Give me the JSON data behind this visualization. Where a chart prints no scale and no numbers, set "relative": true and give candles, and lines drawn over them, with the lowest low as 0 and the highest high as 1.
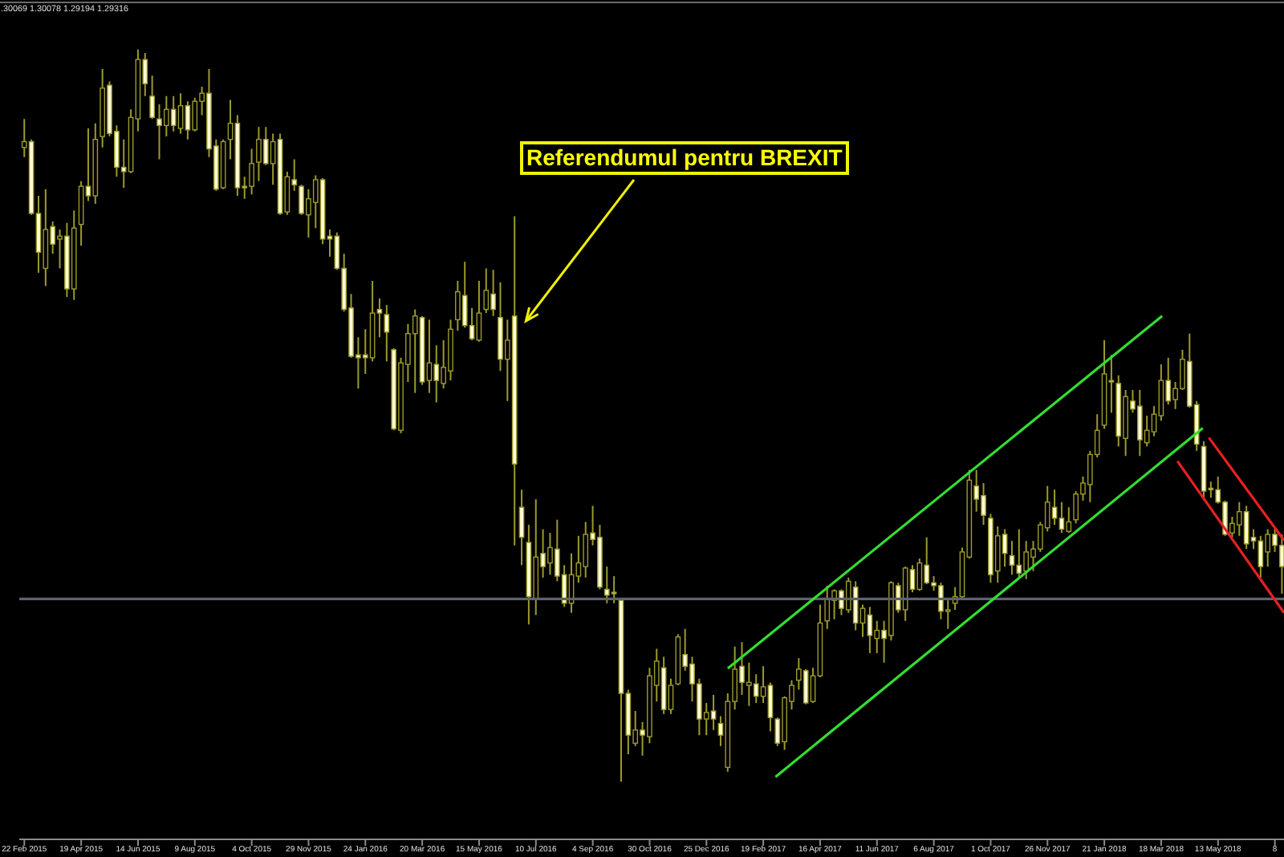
{
  "chart_data": {
    "type": "candlestick",
    "relative": true,
    "x": [
      "2015-02-22",
      "2015-03-01",
      "2015-03-08",
      "2015-03-15",
      "2015-03-22",
      "2015-03-29",
      "2015-04-05",
      "2015-04-12",
      "2015-04-19",
      "2015-04-26",
      "2015-05-03",
      "2015-05-10",
      "2015-05-17",
      "2015-05-24",
      "2015-05-31",
      "2015-06-07",
      "2015-06-14",
      "2015-06-21",
      "2015-06-28",
      "2015-07-05",
      "2015-07-12",
      "2015-07-19",
      "2015-07-26",
      "2015-08-02",
      "2015-08-09",
      "2015-08-16",
      "2015-08-23",
      "2015-08-30",
      "2015-09-06",
      "2015-09-13",
      "2015-09-20",
      "2015-09-27",
      "2015-10-04",
      "2015-10-11",
      "2015-10-18",
      "2015-10-25",
      "2015-11-01",
      "2015-11-08",
      "2015-11-15",
      "2015-11-22",
      "2015-11-29",
      "2015-12-06",
      "2015-12-13",
      "2015-12-20",
      "2015-12-27",
      "2016-01-03",
      "2016-01-10",
      "2016-01-17",
      "2016-01-24",
      "2016-01-31",
      "2016-02-07",
      "2016-02-14",
      "2016-02-21",
      "2016-02-28",
      "2016-03-06",
      "2016-03-13",
      "2016-03-20",
      "2016-03-27",
      "2016-04-03",
      "2016-04-10",
      "2016-04-17",
      "2016-04-24",
      "2016-05-01",
      "2016-05-08",
      "2016-05-15",
      "2016-05-22",
      "2016-05-29",
      "2016-06-05",
      "2016-06-12",
      "2016-06-19",
      "2016-06-26",
      "2016-07-03",
      "2016-07-10",
      "2016-07-17",
      "2016-07-24",
      "2016-07-31",
      "2016-08-07",
      "2016-08-14",
      "2016-08-21",
      "2016-08-28",
      "2016-09-04",
      "2016-09-11",
      "2016-09-18",
      "2016-09-25",
      "2016-10-02",
      "2016-10-09",
      "2016-10-16",
      "2016-10-23",
      "2016-10-30",
      "2016-11-06",
      "2016-11-13",
      "2016-11-20",
      "2016-11-27",
      "2016-12-04",
      "2016-12-11",
      "2016-12-18",
      "2016-12-25",
      "2017-01-01",
      "2017-01-08",
      "2017-01-15",
      "2017-01-22",
      "2017-01-29",
      "2017-02-05",
      "2017-02-12",
      "2017-02-19",
      "2017-02-26",
      "2017-03-05",
      "2017-03-12",
      "2017-03-19",
      "2017-03-26",
      "2017-04-02",
      "2017-04-09",
      "2017-04-16",
      "2017-04-23",
      "2017-04-30",
      "2017-05-07",
      "2017-05-14",
      "2017-05-21",
      "2017-05-28",
      "2017-06-04",
      "2017-06-11",
      "2017-06-18",
      "2017-06-25",
      "2017-07-02",
      "2017-07-09",
      "2017-07-16",
      "2017-07-23",
      "2017-07-30",
      "2017-08-06",
      "2017-08-13",
      "2017-08-20",
      "2017-08-27",
      "2017-09-03",
      "2017-09-10",
      "2017-09-17",
      "2017-09-24",
      "2017-10-01",
      "2017-10-08",
      "2017-10-15",
      "2017-10-22",
      "2017-10-29",
      "2017-11-05",
      "2017-11-12",
      "2017-11-19",
      "2017-11-26",
      "2017-12-03",
      "2017-12-10",
      "2017-12-17",
      "2017-12-24",
      "2017-12-31",
      "2018-01-07",
      "2018-01-14",
      "2018-01-21",
      "2018-01-28",
      "2018-02-04",
      "2018-02-11",
      "2018-02-18",
      "2018-02-25",
      "2018-03-04",
      "2018-03-11",
      "2018-03-18",
      "2018-03-25",
      "2018-04-01",
      "2018-04-08",
      "2018-04-15",
      "2018-04-22",
      "2018-04-29",
      "2018-05-06",
      "2018-05-13",
      "2018-05-20",
      "2018-05-27",
      "2018-06-03",
      "2018-06-10",
      "2018-06-17",
      "2018-06-24",
      "2018-07-01",
      "2018-07-08",
      "2018-07-15"
    ],
    "ohlc": [
      [
        0.866,
        0.905,
        0.853,
        0.874
      ],
      [
        0.874,
        0.877,
        0.774,
        0.776
      ],
      [
        0.776,
        0.8,
        0.695,
        0.723
      ],
      [
        0.701,
        0.809,
        0.677,
        0.754
      ],
      [
        0.758,
        0.765,
        0.721,
        0.734
      ],
      [
        0.741,
        0.754,
        0.701,
        0.745
      ],
      [
        0.745,
        0.763,
        0.662,
        0.673
      ],
      [
        0.673,
        0.78,
        0.658,
        0.756
      ],
      [
        0.761,
        0.82,
        0.732,
        0.813
      ],
      [
        0.813,
        0.892,
        0.793,
        0.8
      ],
      [
        0.8,
        0.899,
        0.789,
        0.877
      ],
      [
        0.881,
        0.973,
        0.866,
        0.947
      ],
      [
        0.951,
        0.956,
        0.881,
        0.885
      ],
      [
        0.888,
        0.896,
        0.826,
        0.839
      ],
      [
        0.839,
        0.877,
        0.811,
        0.833
      ],
      [
        0.833,
        0.918,
        0.831,
        0.907
      ],
      [
        0.905,
        1.0,
        0.888,
        0.986
      ],
      [
        0.986,
        0.995,
        0.936,
        0.953
      ],
      [
        0.936,
        0.964,
        0.905,
        0.907
      ],
      [
        0.905,
        0.925,
        0.85,
        0.896
      ],
      [
        0.896,
        0.936,
        0.881,
        0.918
      ],
      [
        0.918,
        0.936,
        0.888,
        0.896
      ],
      [
        0.892,
        0.94,
        0.885,
        0.923
      ],
      [
        0.923,
        0.929,
        0.877,
        0.89
      ],
      [
        0.89,
        0.934,
        0.888,
        0.929
      ],
      [
        0.929,
        0.949,
        0.91,
        0.94
      ],
      [
        0.94,
        0.973,
        0.853,
        0.864
      ],
      [
        0.868,
        0.877,
        0.807,
        0.809
      ],
      [
        0.811,
        0.877,
        0.809,
        0.874
      ],
      [
        0.877,
        0.931,
        0.85,
        0.899
      ],
      [
        0.899,
        0.91,
        0.8,
        0.811
      ],
      [
        0.813,
        0.826,
        0.796,
        0.811
      ],
      [
        0.813,
        0.864,
        0.802,
        0.844
      ],
      [
        0.846,
        0.894,
        0.82,
        0.877
      ],
      [
        0.877,
        0.894,
        0.842,
        0.844
      ],
      [
        0.844,
        0.885,
        0.815,
        0.874
      ],
      [
        0.877,
        0.885,
        0.774,
        0.776
      ],
      [
        0.778,
        0.833,
        0.774,
        0.826
      ],
      [
        0.822,
        0.85,
        0.807,
        0.815
      ],
      [
        0.813,
        0.815,
        0.774,
        0.776
      ],
      [
        0.774,
        0.809,
        0.743,
        0.796
      ],
      [
        0.791,
        0.828,
        0.756,
        0.822
      ],
      [
        0.822,
        0.824,
        0.734,
        0.741
      ],
      [
        0.745,
        0.754,
        0.717,
        0.741
      ],
      [
        0.745,
        0.75,
        0.699,
        0.701
      ],
      [
        0.701,
        0.721,
        0.642,
        0.645
      ],
      [
        0.647,
        0.666,
        0.579,
        0.581
      ],
      [
        0.583,
        0.607,
        0.537,
        0.579
      ],
      [
        0.583,
        0.618,
        0.557,
        0.579
      ],
      [
        0.579,
        0.684,
        0.574,
        0.64
      ],
      [
        0.645,
        0.66,
        0.607,
        0.64
      ],
      [
        0.638,
        0.651,
        0.574,
        0.614
      ],
      [
        0.59,
        0.592,
        0.48,
        0.482
      ],
      [
        0.48,
        0.579,
        0.476,
        0.572
      ],
      [
        0.57,
        0.625,
        0.546,
        0.612
      ],
      [
        0.612,
        0.645,
        0.531,
        0.636
      ],
      [
        0.634,
        0.636,
        0.542,
        0.546
      ],
      [
        0.548,
        0.631,
        0.531,
        0.572
      ],
      [
        0.57,
        0.596,
        0.518,
        0.548
      ],
      [
        0.544,
        0.603,
        0.537,
        0.566
      ],
      [
        0.561,
        0.631,
        0.548,
        0.618
      ],
      [
        0.631,
        0.684,
        0.616,
        0.669
      ],
      [
        0.664,
        0.71,
        0.62,
        0.623
      ],
      [
        0.623,
        0.647,
        0.603,
        0.605
      ],
      [
        0.603,
        0.684,
        0.601,
        0.64
      ],
      [
        0.645,
        0.701,
        0.64,
        0.671
      ],
      [
        0.666,
        0.699,
        0.636,
        0.645
      ],
      [
        0.634,
        0.682,
        0.561,
        0.577
      ],
      [
        0.577,
        0.631,
        0.52,
        0.603
      ],
      [
        0.636,
        0.772,
        0.323,
        0.434
      ],
      [
        0.375,
        0.399,
        0.296,
        0.334
      ],
      [
        0.327,
        0.351,
        0.215,
        0.253
      ],
      [
        0.25,
        0.386,
        0.228,
        0.307
      ],
      [
        0.312,
        0.345,
        0.279,
        0.294
      ],
      [
        0.299,
        0.34,
        0.283,
        0.32
      ],
      [
        0.318,
        0.358,
        0.274,
        0.281
      ],
      [
        0.283,
        0.296,
        0.239,
        0.244
      ],
      [
        0.244,
        0.312,
        0.231,
        0.283
      ],
      [
        0.281,
        0.336,
        0.272,
        0.299
      ],
      [
        0.294,
        0.355,
        0.279,
        0.338
      ],
      [
        0.34,
        0.377,
        0.323,
        0.331
      ],
      [
        0.334,
        0.351,
        0.263,
        0.266
      ],
      [
        0.263,
        0.294,
        0.244,
        0.255
      ],
      [
        0.259,
        0.281,
        0.244,
        0.257
      ],
      [
        0.248,
        0.25,
        0.0,
        0.121
      ],
      [
        0.121,
        0.126,
        0.038,
        0.064
      ],
      [
        0.053,
        0.097,
        0.049,
        0.071
      ],
      [
        0.071,
        0.082,
        0.036,
        0.064
      ],
      [
        0.062,
        0.156,
        0.053,
        0.145
      ],
      [
        0.132,
        0.182,
        0.11,
        0.165
      ],
      [
        0.156,
        0.171,
        0.093,
        0.099
      ],
      [
        0.099,
        0.141,
        0.093,
        0.132
      ],
      [
        0.134,
        0.202,
        0.132,
        0.198
      ],
      [
        0.174,
        0.209,
        0.152,
        0.158
      ],
      [
        0.161,
        0.171,
        0.11,
        0.134
      ],
      [
        0.134,
        0.141,
        0.064,
        0.086
      ],
      [
        0.086,
        0.108,
        0.064,
        0.095
      ],
      [
        0.097,
        0.119,
        0.071,
        0.086
      ],
      [
        0.08,
        0.09,
        0.049,
        0.064
      ],
      [
        0.02,
        0.121,
        0.014,
        0.11
      ],
      [
        0.11,
        0.185,
        0.099,
        0.154
      ],
      [
        0.158,
        0.191,
        0.119,
        0.136
      ],
      [
        0.132,
        0.163,
        0.104,
        0.136
      ],
      [
        0.134,
        0.147,
        0.108,
        0.117
      ],
      [
        0.117,
        0.158,
        0.108,
        0.13
      ],
      [
        0.132,
        0.136,
        0.069,
        0.088
      ],
      [
        0.086,
        0.088,
        0.049,
        0.053
      ],
      [
        0.055,
        0.117,
        0.044,
        0.115
      ],
      [
        0.11,
        0.139,
        0.099,
        0.132
      ],
      [
        0.139,
        0.169,
        0.126,
        0.154
      ],
      [
        0.152,
        0.154,
        0.106,
        0.108
      ],
      [
        0.11,
        0.156,
        0.108,
        0.145
      ],
      [
        0.145,
        0.242,
        0.143,
        0.217
      ],
      [
        0.22,
        0.268,
        0.209,
        0.25
      ],
      [
        0.248,
        0.263,
        0.222,
        0.261
      ],
      [
        0.261,
        0.263,
        0.228,
        0.237
      ],
      [
        0.235,
        0.279,
        0.231,
        0.274
      ],
      [
        0.266,
        0.274,
        0.207,
        0.217
      ],
      [
        0.217,
        0.242,
        0.198,
        0.237
      ],
      [
        0.228,
        0.239,
        0.176,
        0.2
      ],
      [
        0.196,
        0.22,
        0.176,
        0.207
      ],
      [
        0.207,
        0.22,
        0.163,
        0.196
      ],
      [
        0.2,
        0.274,
        0.193,
        0.272
      ],
      [
        0.268,
        0.272,
        0.231,
        0.235
      ],
      [
        0.235,
        0.294,
        0.22,
        0.292
      ],
      [
        0.29,
        0.296,
        0.259,
        0.263
      ],
      [
        0.263,
        0.305,
        0.261,
        0.299
      ],
      [
        0.296,
        0.334,
        0.27,
        0.272
      ],
      [
        0.272,
        0.281,
        0.261,
        0.268
      ],
      [
        0.268,
        0.272,
        0.222,
        0.233
      ],
      [
        0.233,
        0.248,
        0.209,
        0.235
      ],
      [
        0.244,
        0.266,
        0.235,
        0.253
      ],
      [
        0.253,
        0.32,
        0.25,
        0.314
      ],
      [
        0.307,
        0.426,
        0.305,
        0.412
      ],
      [
        0.404,
        0.426,
        0.369,
        0.386
      ],
      [
        0.391,
        0.408,
        0.351,
        0.364
      ],
      [
        0.36,
        0.366,
        0.272,
        0.283
      ],
      [
        0.288,
        0.349,
        0.272,
        0.336
      ],
      [
        0.338,
        0.345,
        0.294,
        0.312
      ],
      [
        0.309,
        0.329,
        0.283,
        0.296
      ],
      [
        0.296,
        0.345,
        0.279,
        0.285
      ],
      [
        0.288,
        0.329,
        0.277,
        0.314
      ],
      [
        0.307,
        0.329,
        0.288,
        0.318
      ],
      [
        0.318,
        0.355,
        0.314,
        0.351
      ],
      [
        0.347,
        0.404,
        0.342,
        0.382
      ],
      [
        0.375,
        0.399,
        0.351,
        0.36
      ],
      [
        0.36,
        0.382,
        0.34,
        0.345
      ],
      [
        0.342,
        0.375,
        0.34,
        0.355
      ],
      [
        0.358,
        0.397,
        0.353,
        0.393
      ],
      [
        0.393,
        0.417,
        0.384,
        0.408
      ],
      [
        0.406,
        0.452,
        0.382,
        0.447
      ],
      [
        0.447,
        0.502,
        0.443,
        0.48
      ],
      [
        0.487,
        0.603,
        0.482,
        0.557
      ],
      [
        0.548,
        0.583,
        0.504,
        0.546
      ],
      [
        0.544,
        0.555,
        0.458,
        0.472
      ],
      [
        0.469,
        0.535,
        0.445,
        0.526
      ],
      [
        0.52,
        0.535,
        0.504,
        0.509
      ],
      [
        0.513,
        0.535,
        0.445,
        0.467
      ],
      [
        0.463,
        0.5,
        0.458,
        0.48
      ],
      [
        0.478,
        0.513,
        0.472,
        0.502
      ],
      [
        0.5,
        0.57,
        0.493,
        0.548
      ],
      [
        0.548,
        0.579,
        0.515,
        0.52
      ],
      [
        0.522,
        0.546,
        0.509,
        0.537
      ],
      [
        0.537,
        0.59,
        0.535,
        0.577
      ],
      [
        0.574,
        0.612,
        0.511,
        0.513
      ],
      [
        0.515,
        0.52,
        0.452,
        0.461
      ],
      [
        0.458,
        0.465,
        0.386,
        0.397
      ],
      [
        0.401,
        0.41,
        0.388,
        0.399
      ],
      [
        0.399,
        0.417,
        0.38,
        0.382
      ],
      [
        0.382,
        0.384,
        0.336,
        0.338
      ],
      [
        0.34,
        0.362,
        0.334,
        0.353
      ],
      [
        0.351,
        0.382,
        0.336,
        0.369
      ],
      [
        0.369,
        0.377,
        0.318,
        0.325
      ],
      [
        0.334,
        0.345,
        0.318,
        0.329
      ],
      [
        0.329,
        0.336,
        0.279,
        0.294
      ],
      [
        0.314,
        0.345,
        0.294,
        0.338
      ],
      [
        0.338,
        0.347,
        0.314,
        0.323
      ],
      [
        0.323,
        0.338,
        0.257,
        0.294
      ]
    ],
    "color": "#9c9a2c",
    "colors": [
      "#000000",
      "#fffbd4",
      "#fffbd4",
      "#000000",
      "#fffbd4",
      "#000000",
      "#fffbd4",
      "#000000",
      "#000000",
      "#fffbd4",
      "#000000",
      "#000000",
      "#fffbd4",
      "#fffbd4",
      "#fffbd4",
      "#000000",
      "#000000",
      "#fffbd4",
      "#fffbd4",
      "#fffbd4",
      "#000000",
      "#fffbd4",
      "#000000",
      "#fffbd4",
      "#000000",
      "#000000",
      "#fffbd4",
      "#fffbd4",
      "#000000",
      "#000000",
      "#fffbd4",
      "#fffbd4",
      "#000000",
      "#000000",
      "#fffbd4",
      "#000000",
      "#fffbd4",
      "#000000",
      "#fffbd4",
      "#fffbd4",
      "#000000",
      "#000000",
      "#fffbd4",
      "#fffbd4",
      "#fffbd4",
      "#fffbd4",
      "#fffbd4",
      "#fffbd4",
      "#fffbd4",
      "#000000",
      "#fffbd4",
      "#fffbd4",
      "#fffbd4",
      "#000000",
      "#000000",
      "#000000",
      "#fffbd4",
      "#000000",
      "#fffbd4",
      "#000000",
      "#000000",
      "#000000",
      "#fffbd4",
      "#fffbd4",
      "#000000",
      "#000000",
      "#fffbd4",
      "#fffbd4",
      "#000000",
      "#fffbd4",
      "#fffbd4",
      "#fffbd4",
      "#000000",
      "#fffbd4",
      "#000000",
      "#fffbd4",
      "#fffbd4",
      "#000000",
      "#000000",
      "#000000",
      "#fffbd4",
      "#fffbd4",
      "#fffbd4",
      "#fffbd4",
      "#fffbd4",
      "#fffbd4",
      "#000000",
      "#fffbd4",
      "#000000",
      "#000000",
      "#fffbd4",
      "#000000",
      "#000000",
      "#fffbd4",
      "#fffbd4",
      "#fffbd4",
      "#000000",
      "#fffbd4",
      "#fffbd4",
      "#000000",
      "#000000",
      "#fffbd4",
      "#000000",
      "#fffbd4",
      "#000000",
      "#fffbd4",
      "#fffbd4",
      "#000000",
      "#000000",
      "#000000",
      "#fffbd4",
      "#000000",
      "#000000",
      "#000000",
      "#000000",
      "#fffbd4",
      "#000000",
      "#fffbd4",
      "#000000",
      "#fffbd4",
      "#000000",
      "#fffbd4",
      "#000000",
      "#fffbd4",
      "#000000",
      "#fffbd4",
      "#000000",
      "#fffbd4",
      "#fffbd4",
      "#fffbd4",
      "#000000",
      "#000000",
      "#000000",
      "#000000",
      "#fffbd4",
      "#fffbd4",
      "#fffbd4",
      "#000000",
      "#fffbd4",
      "#fffbd4",
      "#fffbd4",
      "#000000",
      "#000000",
      "#000000",
      "#000000",
      "#fffbd4",
      "#fffbd4",
      "#000000",
      "#000000",
      "#000000",
      "#000000",
      "#000000",
      "#000000",
      "#fffbd4",
      "#fffbd4",
      "#000000",
      "#fffbd4",
      "#fffbd4",
      "#000000",
      "#000000",
      "#000000",
      "#fffbd4",
      "#000000",
      "#000000",
      "#fffbd4",
      "#fffbd4",
      "#fffbd4",
      "#fffbd4",
      "#fffbd4",
      "#fffbd4",
      "#000000",
      "#000000",
      "#fffbd4",
      "#fffbd4",
      "#fffbd4",
      "#000000",
      "#fffbd4",
      "#fffbd4"
    ],
    "series": [
      {
        "type": "line",
        "color": "#33dd33",
        "x": [
          "2017-01-15",
          "2018-03-19"
        ],
        "values": [
          0.155,
          0.636
        ]
      },
      {
        "type": "line",
        "color": "#33dd33",
        "x": [
          "2017-03-03",
          "2018-04-28"
        ],
        "values": [
          0.007,
          0.483
        ]
      },
      {
        "type": "line",
        "color": "#e82020",
        "x": [
          "2018-05-04",
          "2018-07-17"
        ],
        "values": [
          0.47,
          0.33
        ]
      },
      {
        "type": "line",
        "color": "#e82020",
        "x": [
          "2018-04-03",
          "2018-07-17"
        ],
        "values": [
          0.438,
          0.231
        ]
      }
    ],
    "xlim": [
      "2015-02-17",
      "2018-07-17"
    ],
    "xticks": [
      {
        "value": "2015-02-22",
        "label": "22 Feb 2015"
      },
      {
        "value": "2015-04-19",
        "label": "19 Apr 2015"
      },
      {
        "value": "2015-06-14",
        "label": "14 Jun 2015"
      },
      {
        "value": "2015-08-09",
        "label": "9 Aug 2015"
      },
      {
        "value": "2015-10-04",
        "label": "4 Oct 2015"
      },
      {
        "value": "2015-11-29",
        "label": "29 Nov 2015"
      },
      {
        "value": "2016-01-24",
        "label": "24 Jan 2016"
      },
      {
        "value": "2016-03-20",
        "label": "20 Mar 2016"
      },
      {
        "value": "2016-05-15",
        "label": "15 May 2016"
      },
      {
        "value": "2016-07-10",
        "label": "10 Jul 2016"
      },
      {
        "value": "2016-09-04",
        "label": "4 Sep 2016"
      },
      {
        "value": "2016-10-30",
        "label": "30 Oct 2016"
      },
      {
        "value": "2016-12-25",
        "label": "25 Dec 2016"
      },
      {
        "value": "2017-02-19",
        "label": "19 Feb 2017"
      },
      {
        "value": "2017-04-16",
        "label": "16 Apr 2017"
      },
      {
        "value": "2017-06-11",
        "label": "11 Jun 2017"
      },
      {
        "value": "2017-08-06",
        "label": "6 Aug 2017"
      },
      {
        "value": "2017-10-01",
        "label": "1 Oct 2017"
      },
      {
        "value": "2017-11-26",
        "label": "26 Nov 2017"
      },
      {
        "value": "2018-01-21",
        "label": "21 Jan 2018"
      },
      {
        "value": "2018-03-18",
        "label": "18 Mar 2018"
      },
      {
        "value": "2018-05-13",
        "label": "13 May 2018"
      },
      {
        "value": "2018-07-08",
        "label": "8"
      }
    ],
    "ref_lines": [
      {
        "axis": "y",
        "value": 0.25,
        "color": "#5d6272"
      }
    ],
    "annotations": [
      ".30069 1.30078 1.29194 1.29316",
      "Referendumul pentru BREXIT"
    ]
  }
}
